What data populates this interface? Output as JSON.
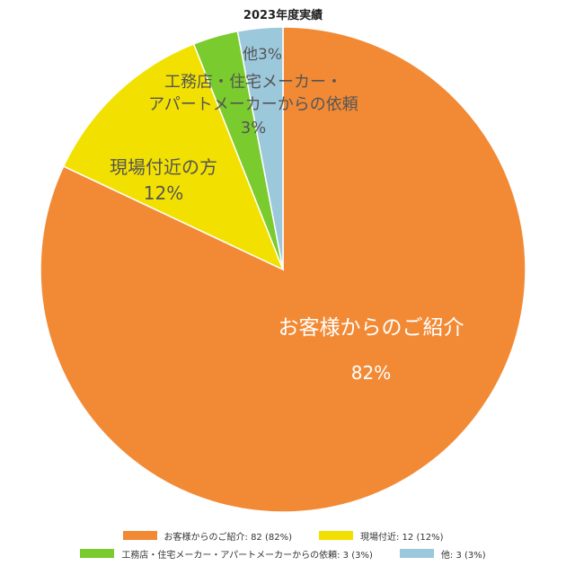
{
  "chart_data": {
    "type": "pie",
    "title": "2023年度実績",
    "legend_position": "bottom",
    "slices": [
      {
        "name": "お客様からのご紹介",
        "value": 82,
        "percent": 82,
        "color": "#F28A35",
        "label_lines": [
          "お客様からのご紹介",
          "82%"
        ],
        "legend_text": "お客様からのご紹介: 82 (82%)"
      },
      {
        "name": "現場付近",
        "value": 12,
        "percent": 12,
        "color": "#F2E100",
        "label_lines": [
          "現場付近の方",
          "12%"
        ],
        "legend_text": "現場付近: 12 (12%)"
      },
      {
        "name": "工務店・住宅メーカー・アパートメーカーからの依頼",
        "value": 3,
        "percent": 3,
        "color": "#7ACB2E",
        "label_lines": [
          "工務店・住宅メーカー・",
          "アパートメーカーからの依頼",
          "3%"
        ],
        "legend_text": "工務店・住宅メーカー・アパートメーカーからの依頼: 3 (3%)"
      },
      {
        "name": "他",
        "value": 3,
        "percent": 3,
        "color": "#9CC8DC",
        "label_lines": [
          "他3%"
        ],
        "legend_text": "他: 3 (3%)"
      }
    ]
  }
}
